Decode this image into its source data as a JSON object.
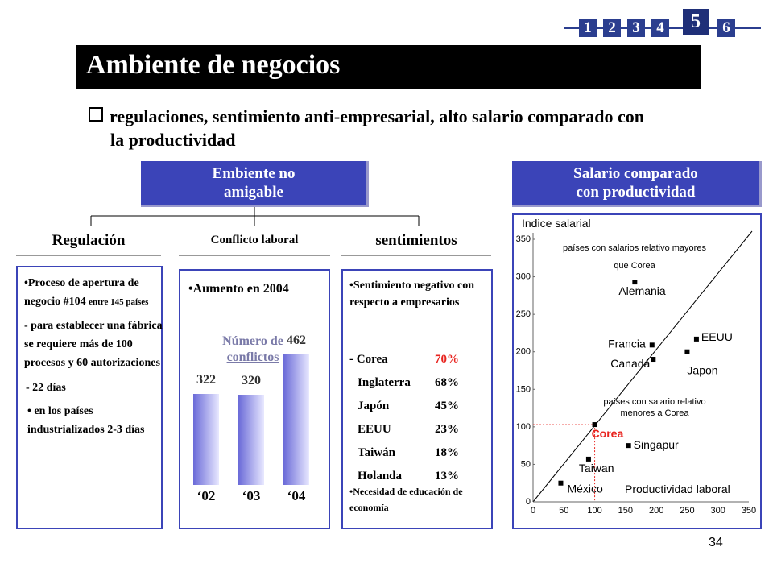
{
  "nav": {
    "items": [
      "1",
      "2",
      "3",
      "4",
      "5",
      "6"
    ],
    "active": "5"
  },
  "title": "Ambiente de negocios",
  "bullet": {
    "line1": "regulaciones, sentimiento anti-empresarial, alto salario comparado con",
    "line2": "la productividad"
  },
  "left_header": {
    "line1": "Embiente no",
    "line2": "amigable"
  },
  "right_header": {
    "line1": "Salario comparado",
    "line2": "con productividad"
  },
  "categories": {
    "reg": "Regulación",
    "conf": "Conflicto laboral",
    "sent": "sentimientos"
  },
  "regulacion": {
    "p1a": "•Proceso de apertura de negocio #104",
    "p1b": "entre 145 países",
    "p2": "- para establecer una fábrica se requiere más de 100 procesos y 60 autorizaciones",
    "p3": "- 22 días",
    "p4": "•  en los países industrializados 2-3 días"
  },
  "conflicto": {
    "head": "•Aumento en 2004",
    "chart_title": "Número de conflictos",
    "labels": [
      "322",
      "320",
      "462"
    ],
    "years": [
      "‘02",
      "‘03",
      "‘04"
    ]
  },
  "sentimientos": {
    "p1": "•Sentimiento negativo con respecto a empresarios",
    "rows": [
      {
        "c": "- Corea",
        "v": "70%",
        "hl": true
      },
      {
        "c": "Inglaterra",
        "v": "68%",
        "hl": false
      },
      {
        "c": "Japón",
        "v": "45%",
        "hl": false
      },
      {
        "c": "EEUU",
        "v": "23%",
        "hl": false
      },
      {
        "c": "Taiwán",
        "v": "18%",
        "hl": false
      },
      {
        "c": "Holanda",
        "v": "13%",
        "hl": false
      }
    ],
    "p2": "•Necesidad de educación de economía"
  },
  "colors": {
    "blue": "#3b44b8",
    "nav": "#2b3e8f",
    "red": "#e8231e"
  },
  "chart_data": [
    {
      "type": "bar",
      "title": "Número de conflictos",
      "categories": [
        "‘02",
        "‘03",
        "‘04"
      ],
      "values": [
        322,
        320,
        462
      ],
      "ylim": [
        0,
        500
      ]
    },
    {
      "type": "scatter",
      "ylabel": "Indice salarial",
      "xlabel": "Productividad laboral",
      "xlim": [
        0,
        350
      ],
      "ylim": [
        0,
        350
      ],
      "xticks": [
        "0",
        "50",
        "100",
        "150",
        "200",
        "250",
        "300",
        "350"
      ],
      "yticks": [
        "0",
        "50",
        "100",
        "150",
        "200",
        "250",
        "300",
        "350"
      ],
      "points": [
        {
          "name": "Alemania",
          "x": 165,
          "y": 293
        },
        {
          "name": "Francia",
          "x": 193,
          "y": 209
        },
        {
          "name": "Canadá",
          "x": 195,
          "y": 190
        },
        {
          "name": "EEUU",
          "x": 265,
          "y": 217
        },
        {
          "name": "Japon",
          "x": 250,
          "y": 200
        },
        {
          "name": "Corea",
          "x": 100,
          "y": 103
        },
        {
          "name": "Singapur",
          "x": 155,
          "y": 75
        },
        {
          "name": "Taiwan",
          "x": 90,
          "y": 57
        },
        {
          "name": "México",
          "x": 45,
          "y": 25
        }
      ],
      "annotations": [
        "países con salarios relativo mayores que Corea",
        "países con salario relativo menores a Corea"
      ]
    }
  ],
  "page_number": "34"
}
